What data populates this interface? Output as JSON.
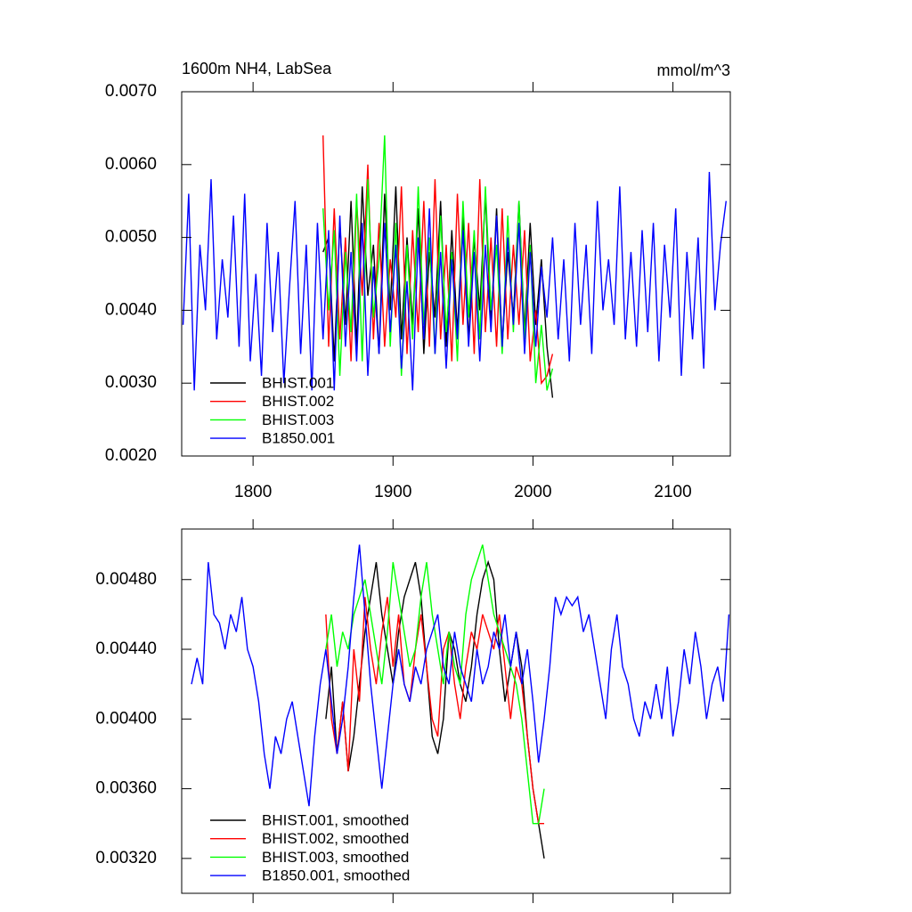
{
  "chart_data": [
    {
      "type": "line",
      "title": "1600m NH4, LabSea",
      "units": "mmol/m^3",
      "xlim": [
        1749,
        2141
      ],
      "ylim": [
        0.002,
        0.007
      ],
      "xticks": [
        1800,
        1900,
        2000,
        2100
      ],
      "xtick_labels": true,
      "yticks": [
        {
          "value": 0.002,
          "label": "0.0020"
        },
        {
          "value": 0.003,
          "label": "0.0030"
        },
        {
          "value": 0.004,
          "label": "0.0040"
        },
        {
          "value": 0.005,
          "label": "0.0050"
        },
        {
          "value": 0.006,
          "label": "0.0060"
        },
        {
          "value": 0.007,
          "label": "0.0070"
        }
      ],
      "legend": "lower left",
      "series": [
        {
          "name": "BHIST.001",
          "color": "#000000",
          "x": [
            1850,
            1854,
            1858,
            1862,
            1866,
            1870,
            1874,
            1878,
            1882,
            1886,
            1890,
            1894,
            1898,
            1902,
            1906,
            1910,
            1914,
            1918,
            1922,
            1926,
            1930,
            1934,
            1938,
            1942,
            1946,
            1950,
            1954,
            1958,
            1962,
            1966,
            1970,
            1974,
            1978,
            1982,
            1986,
            1990,
            1994,
            1998,
            2002,
            2006,
            2010,
            2014
          ],
          "values": [
            0.0048,
            0.005,
            0.0033,
            0.0052,
            0.0038,
            0.0055,
            0.0035,
            0.0057,
            0.0042,
            0.0049,
            0.0034,
            0.0056,
            0.004,
            0.0057,
            0.0036,
            0.005,
            0.0038,
            0.0054,
            0.0034,
            0.0048,
            0.0039,
            0.0055,
            0.0035,
            0.0051,
            0.0037,
            0.0053,
            0.0036,
            0.005,
            0.004,
            0.0056,
            0.0038,
            0.0054,
            0.0035,
            0.0048,
            0.0039,
            0.0055,
            0.0037,
            0.0052,
            0.0038,
            0.0047,
            0.0035,
            0.0028
          ]
        },
        {
          "name": "BHIST.002",
          "color": "#ff0000",
          "x": [
            1850,
            1854,
            1858,
            1862,
            1866,
            1870,
            1874,
            1878,
            1882,
            1886,
            1890,
            1894,
            1898,
            1902,
            1906,
            1910,
            1914,
            1918,
            1922,
            1926,
            1930,
            1934,
            1938,
            1942,
            1946,
            1950,
            1954,
            1958,
            1962,
            1966,
            1970,
            1974,
            1978,
            1982,
            1986,
            1990,
            1994,
            1998,
            2002,
            2006,
            2010,
            2014
          ],
          "values": [
            0.0064,
            0.0035,
            0.0054,
            0.0036,
            0.005,
            0.0033,
            0.0055,
            0.0042,
            0.006,
            0.0036,
            0.0052,
            0.0035,
            0.0047,
            0.0039,
            0.0057,
            0.0034,
            0.0051,
            0.0037,
            0.0055,
            0.0035,
            0.0058,
            0.0036,
            0.0049,
            0.0033,
            0.0056,
            0.0038,
            0.0052,
            0.0034,
            0.0058,
            0.0037,
            0.005,
            0.0035,
            0.0054,
            0.0036,
            0.0049,
            0.0038,
            0.0051,
            0.0033,
            0.004,
            0.003,
            0.0031,
            0.0034
          ]
        },
        {
          "name": "BHIST.003",
          "color": "#00ff00",
          "x": [
            1850,
            1854,
            1858,
            1862,
            1866,
            1870,
            1874,
            1878,
            1882,
            1886,
            1890,
            1894,
            1898,
            1902,
            1906,
            1910,
            1914,
            1918,
            1922,
            1926,
            1930,
            1934,
            1938,
            1942,
            1946,
            1950,
            1954,
            1958,
            1962,
            1966,
            1970,
            1974,
            1978,
            1982,
            1986,
            1990,
            1994,
            1998,
            2002,
            2006,
            2010,
            2014
          ],
          "values": [
            0.0054,
            0.004,
            0.0051,
            0.0031,
            0.0048,
            0.0037,
            0.0056,
            0.0033,
            0.0058,
            0.0039,
            0.0047,
            0.0064,
            0.0035,
            0.0052,
            0.0031,
            0.0049,
            0.0036,
            0.0057,
            0.0038,
            0.005,
            0.0034,
            0.0053,
            0.0037,
            0.0048,
            0.0033,
            0.0055,
            0.0039,
            0.0051,
            0.0036,
            0.0057,
            0.004,
            0.0049,
            0.0034,
            0.0053,
            0.0037,
            0.0055,
            0.0036,
            0.0049,
            0.003,
            0.0038,
            0.0029,
            0.0032
          ]
        },
        {
          "name": "B1850.001",
          "color": "#0000ff",
          "x": [
            1750,
            1754,
            1758,
            1762,
            1766,
            1770,
            1774,
            1778,
            1782,
            1786,
            1790,
            1794,
            1798,
            1802,
            1806,
            1810,
            1814,
            1818,
            1822,
            1826,
            1830,
            1834,
            1838,
            1842,
            1846,
            1850,
            1854,
            1858,
            1862,
            1866,
            1870,
            1874,
            1878,
            1882,
            1886,
            1890,
            1894,
            1898,
            1902,
            1906,
            1910,
            1914,
            1918,
            1922,
            1926,
            1930,
            1934,
            1938,
            1942,
            1946,
            1950,
            1954,
            1958,
            1962,
            1966,
            1970,
            1974,
            1978,
            1982,
            1986,
            1990,
            1994,
            1998,
            2002,
            2006,
            2010,
            2014,
            2018,
            2022,
            2026,
            2030,
            2034,
            2038,
            2042,
            2046,
            2050,
            2054,
            2058,
            2062,
            2066,
            2070,
            2074,
            2078,
            2082,
            2086,
            2090,
            2094,
            2098,
            2102,
            2106,
            2110,
            2114,
            2118,
            2122,
            2126,
            2130,
            2134,
            2138
          ],
          "values": [
            0.0038,
            0.0056,
            0.0029,
            0.0049,
            0.004,
            0.0058,
            0.0036,
            0.0047,
            0.0039,
            0.0053,
            0.0035,
            0.0056,
            0.0033,
            0.0045,
            0.0031,
            0.0052,
            0.0037,
            0.0048,
            0.003,
            0.0043,
            0.0055,
            0.0034,
            0.0049,
            0.0029,
            0.0052,
            0.0036,
            0.0051,
            0.0029,
            0.0053,
            0.0035,
            0.0048,
            0.0033,
            0.0052,
            0.0031,
            0.0046,
            0.0034,
            0.0052,
            0.0037,
            0.0049,
            0.0032,
            0.0044,
            0.0029,
            0.005,
            0.0036,
            0.0054,
            0.0034,
            0.0048,
            0.0032,
            0.0047,
            0.0036,
            0.0051,
            0.0035,
            0.0048,
            0.0033,
            0.0049,
            0.0037,
            0.0053,
            0.0035,
            0.005,
            0.0038,
            0.0052,
            0.0034,
            0.0048,
            0.0035,
            0.0046,
            0.0039,
            0.005,
            0.0036,
            0.0047,
            0.0033,
            0.0052,
            0.0038,
            0.0049,
            0.0034,
            0.0055,
            0.004,
            0.0047,
            0.0038,
            0.0057,
            0.0036,
            0.0048,
            0.0035,
            0.0051,
            0.0037,
            0.0052,
            0.0033,
            0.0049,
            0.0039,
            0.0054,
            0.0031,
            0.0048,
            0.0036,
            0.005,
            0.0032,
            0.0059,
            0.004,
            0.0049,
            0.0055
          ]
        }
      ]
    },
    {
      "type": "line",
      "xlim": [
        1749,
        2141
      ],
      "ylim": [
        0.003,
        0.00509
      ],
      "xticks": [
        1800,
        1900,
        2000,
        2100
      ],
      "xtick_labels": false,
      "yticks": [
        {
          "value": 0.0032,
          "label": "0.00320"
        },
        {
          "value": 0.0036,
          "label": "0.00360"
        },
        {
          "value": 0.004,
          "label": "0.00400"
        },
        {
          "value": 0.0044,
          "label": "0.00440"
        },
        {
          "value": 0.0048,
          "label": "0.00480"
        }
      ],
      "legend": "lower left",
      "series": [
        {
          "name": "BHIST.001, smoothed",
          "color": "#000000",
          "x": [
            1852,
            1856,
            1860,
            1864,
            1868,
            1872,
            1876,
            1880,
            1884,
            1888,
            1892,
            1896,
            1900,
            1904,
            1908,
            1912,
            1916,
            1920,
            1924,
            1928,
            1932,
            1936,
            1940,
            1944,
            1948,
            1952,
            1956,
            1960,
            1964,
            1968,
            1972,
            1976,
            1980,
            1984,
            1988,
            1992,
            1996,
            2000,
            2004,
            2008
          ],
          "values": [
            0.004,
            0.0043,
            0.0038,
            0.0041,
            0.0037,
            0.0039,
            0.0042,
            0.0045,
            0.0047,
            0.0049,
            0.0046,
            0.0044,
            0.0042,
            0.0045,
            0.0047,
            0.0048,
            0.0049,
            0.0047,
            0.0043,
            0.0039,
            0.0038,
            0.004,
            0.0045,
            0.0044,
            0.0042,
            0.0041,
            0.0043,
            0.0046,
            0.0048,
            0.0049,
            0.0048,
            0.0044,
            0.0041,
            0.0043,
            0.0045,
            0.0043,
            0.0039,
            0.0036,
            0.0034,
            0.0032
          ]
        },
        {
          "name": "BHIST.002, smoothed",
          "color": "#ff0000",
          "x": [
            1852,
            1856,
            1860,
            1864,
            1868,
            1872,
            1876,
            1880,
            1884,
            1888,
            1892,
            1896,
            1900,
            1904,
            1908,
            1912,
            1916,
            1920,
            1924,
            1928,
            1932,
            1936,
            1940,
            1944,
            1948,
            1952,
            1956,
            1960,
            1964,
            1968,
            1972,
            1976,
            1980,
            1984,
            1988,
            1992,
            1996,
            2000,
            2004,
            2008
          ],
          "values": [
            0.0046,
            0.004,
            0.0038,
            0.0041,
            0.0037,
            0.0044,
            0.0041,
            0.0047,
            0.0044,
            0.0042,
            0.0045,
            0.0047,
            0.0043,
            0.0046,
            0.0042,
            0.0041,
            0.0044,
            0.0046,
            0.0043,
            0.004,
            0.0039,
            0.0044,
            0.0045,
            0.0042,
            0.004,
            0.0043,
            0.0045,
            0.0044,
            0.0046,
            0.0045,
            0.0044,
            0.0046,
            0.0043,
            0.004,
            0.0043,
            0.0042,
            0.0039,
            0.0036,
            0.0034,
            0.0034
          ]
        },
        {
          "name": "BHIST.003, smoothed",
          "color": "#00ff00",
          "x": [
            1852,
            1856,
            1860,
            1864,
            1868,
            1872,
            1876,
            1880,
            1884,
            1888,
            1892,
            1896,
            1900,
            1904,
            1908,
            1912,
            1916,
            1920,
            1924,
            1928,
            1932,
            1936,
            1940,
            1944,
            1948,
            1952,
            1956,
            1960,
            1964,
            1968,
            1972,
            1976,
            1980,
            1984,
            1988,
            1992,
            1996,
            2000,
            2004,
            2008
          ],
          "values": [
            0.0044,
            0.0046,
            0.0043,
            0.0045,
            0.0044,
            0.0046,
            0.0047,
            0.0048,
            0.0046,
            0.0044,
            0.0042,
            0.0045,
            0.0049,
            0.0047,
            0.0045,
            0.0043,
            0.0044,
            0.0047,
            0.0049,
            0.0046,
            0.0044,
            0.0042,
            0.0045,
            0.0043,
            0.0042,
            0.0046,
            0.0048,
            0.0049,
            0.005,
            0.0048,
            0.0046,
            0.0045,
            0.0044,
            0.0043,
            0.0042,
            0.004,
            0.0037,
            0.0034,
            0.0034,
            0.0036
          ]
        },
        {
          "name": "B1850.001, smoothed",
          "color": "#0000ff",
          "x": [
            1756,
            1760,
            1764,
            1768,
            1772,
            1776,
            1780,
            1784,
            1788,
            1792,
            1796,
            1800,
            1804,
            1808,
            1812,
            1816,
            1820,
            1824,
            1828,
            1832,
            1836,
            1840,
            1844,
            1848,
            1852,
            1856,
            1860,
            1864,
            1868,
            1872,
            1876,
            1880,
            1884,
            1888,
            1892,
            1896,
            1900,
            1904,
            1908,
            1912,
            1916,
            1920,
            1924,
            1928,
            1932,
            1936,
            1940,
            1944,
            1948,
            1952,
            1956,
            1960,
            1964,
            1968,
            1972,
            1976,
            1980,
            1984,
            1988,
            1992,
            1996,
            2000,
            2004,
            2008,
            2012,
            2016,
            2020,
            2024,
            2028,
            2032,
            2036,
            2040,
            2044,
            2048,
            2052,
            2056,
            2060,
            2064,
            2068,
            2072,
            2076,
            2080,
            2084,
            2088,
            2092,
            2096,
            2100,
            2104,
            2108,
            2112,
            2116,
            2120,
            2124,
            2128,
            2132,
            2136,
            2140
          ],
          "values": [
            0.0042,
            0.00435,
            0.0042,
            0.0049,
            0.0046,
            0.00455,
            0.0044,
            0.0046,
            0.0045,
            0.0047,
            0.0044,
            0.0043,
            0.0041,
            0.0038,
            0.0036,
            0.0039,
            0.0038,
            0.004,
            0.0041,
            0.0039,
            0.0037,
            0.0035,
            0.0039,
            0.0042,
            0.0044,
            0.0041,
            0.0038,
            0.004,
            0.0043,
            0.0047,
            0.005,
            0.0046,
            0.0042,
            0.0039,
            0.0036,
            0.0039,
            0.0042,
            0.0044,
            0.0042,
            0.0041,
            0.0043,
            0.0042,
            0.0044,
            0.0045,
            0.0046,
            0.0043,
            0.0042,
            0.0045,
            0.0043,
            0.0042,
            0.0041,
            0.0044,
            0.0042,
            0.0043,
            0.0045,
            0.0044,
            0.0046,
            0.0043,
            0.0045,
            0.0042,
            0.0044,
            0.0041,
            0.00375,
            0.004,
            0.0043,
            0.0047,
            0.0046,
            0.0047,
            0.00465,
            0.0047,
            0.0045,
            0.0046,
            0.0044,
            0.0042,
            0.004,
            0.0044,
            0.0046,
            0.0043,
            0.0042,
            0.004,
            0.0039,
            0.0041,
            0.004,
            0.0042,
            0.004,
            0.0043,
            0.0039,
            0.0041,
            0.0044,
            0.0042,
            0.0045,
            0.0043,
            0.004,
            0.0042,
            0.0043,
            0.0041,
            0.0046
          ]
        }
      ]
    }
  ]
}
